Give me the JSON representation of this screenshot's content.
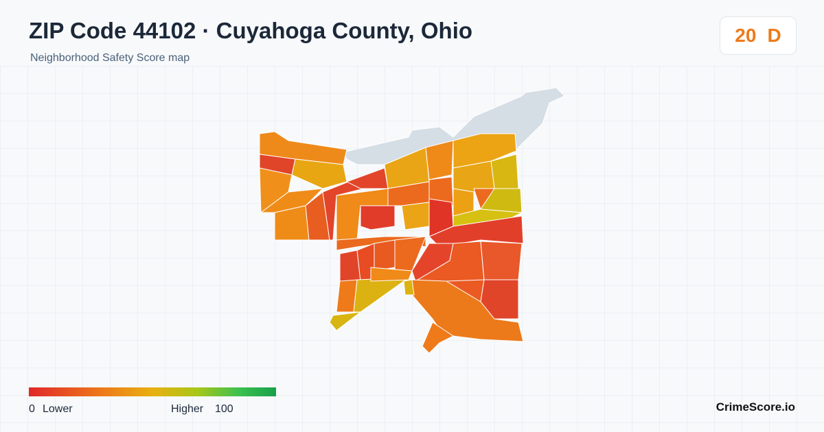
{
  "header": {
    "title": "ZIP Code 44102 · Cuyahoga County, Ohio",
    "subtitle": "Neighborhood Safety Score map"
  },
  "score": {
    "value": 20,
    "grade": "D"
  },
  "legend": {
    "min": 0,
    "min_label": "Lower",
    "max_label": "Higher",
    "max": 100
  },
  "brand": "CrimeScore.io"
}
